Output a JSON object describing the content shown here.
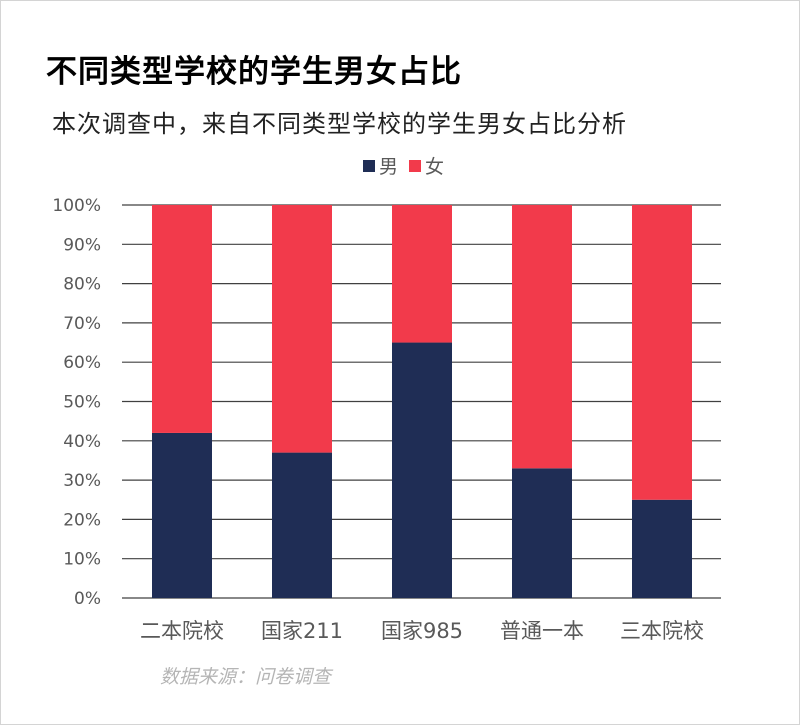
{
  "title": "不同类型学校的学生男女占比",
  "subtitle": "本次调查中，来自不同类型学校的学生男女占比分析",
  "source": "数据来源：问卷调查",
  "colors": {
    "male": "#1f2d55",
    "female": "#f23a4b",
    "grid": "#404040",
    "text": "#595959"
  },
  "chart_data": {
    "type": "bar",
    "stacked": true,
    "categories": [
      "二本院校",
      "国家211",
      "国家985",
      "普通一本",
      "三本院校"
    ],
    "series": [
      {
        "name": "男",
        "color": "#1f2d55",
        "values": [
          42,
          37,
          65,
          33,
          25
        ]
      },
      {
        "name": "女",
        "color": "#f23a4b",
        "values": [
          58,
          63,
          35,
          67,
          75
        ]
      }
    ],
    "ylim": [
      0,
      100
    ],
    "yticks": [
      "0%",
      "10%",
      "20%",
      "30%",
      "40%",
      "50%",
      "60%",
      "70%",
      "80%",
      "90%",
      "100%"
    ],
    "grid": true,
    "legend_position": "top-center"
  }
}
